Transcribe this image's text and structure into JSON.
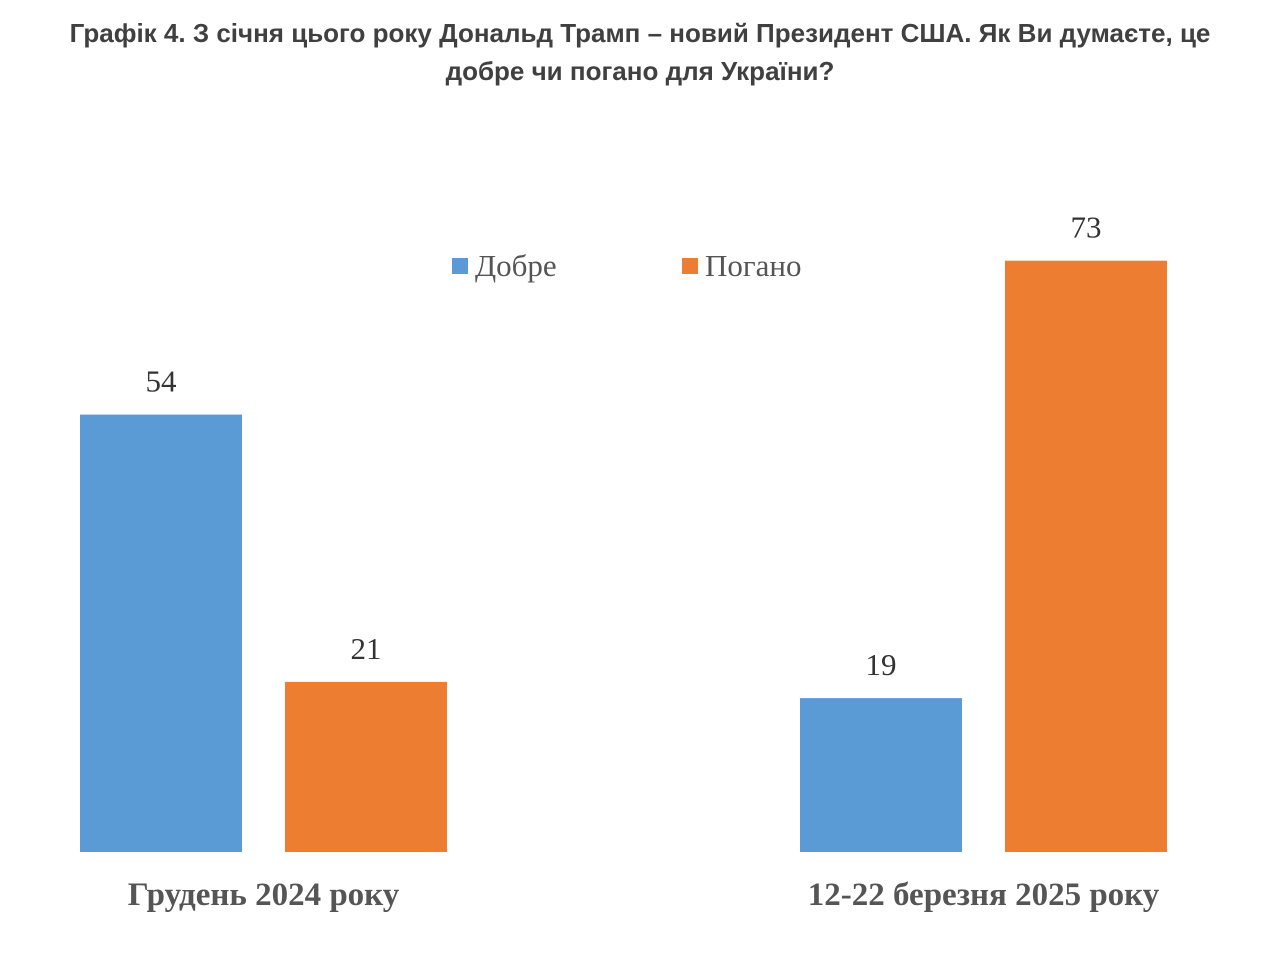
{
  "title": {
    "line1": "Графік 4. З січня цього року Дональд Трамп – новий Президент США. Як Ви думаєте, це",
    "line2": "добре чи погано для України?"
  },
  "chart_data": {
    "type": "bar",
    "categories": [
      "Грудень 2024 року",
      "12-22 березня 2025 року"
    ],
    "series": [
      {
        "name": "Добре",
        "color": "#5B9BD5",
        "values": [
          54,
          19
        ]
      },
      {
        "name": "Погано",
        "color": "#ED7D31",
        "values": [
          21,
          73
        ]
      }
    ],
    "ylim": [
      0,
      80
    ],
    "grid": false,
    "legend": "top-center",
    "data_labels": true
  }
}
